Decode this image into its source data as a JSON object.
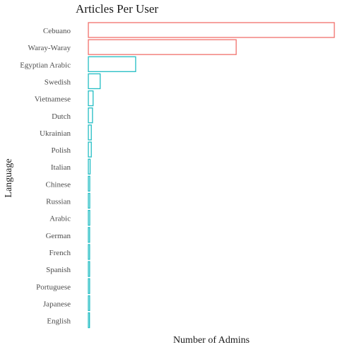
{
  "chart_data": {
    "type": "bar",
    "orientation": "horizontal",
    "title": "Articles Per User",
    "xlabel": "Number of Admins",
    "ylabel": "Language",
    "categories": [
      "Cebuano",
      "Waray-Waray",
      "Egyptian Arabic",
      "Swedish",
      "Vietnamese",
      "Dutch",
      "Ukrainian",
      "Polish",
      "Italian",
      "Chinese",
      "Russian",
      "Arabic",
      "German",
      "French",
      "Spanish",
      "Portuguese",
      "Japanese",
      "English"
    ],
    "values": [
      208,
      125,
      40,
      10,
      4,
      3.5,
      2.5,
      2.5,
      1.5,
      1.2,
      1.2,
      1.2,
      1.1,
      1.1,
      1.1,
      1.1,
      1.1,
      1.0
    ],
    "highlight": [
      true,
      true,
      false,
      false,
      false,
      false,
      false,
      false,
      false,
      false,
      false,
      false,
      false,
      false,
      false,
      false,
      false,
      false
    ],
    "colors": {
      "highlight": "#f0706b",
      "default": "#22bdc4"
    },
    "xlim": [
      0,
      208
    ],
    "grid": false,
    "legend": "none"
  }
}
